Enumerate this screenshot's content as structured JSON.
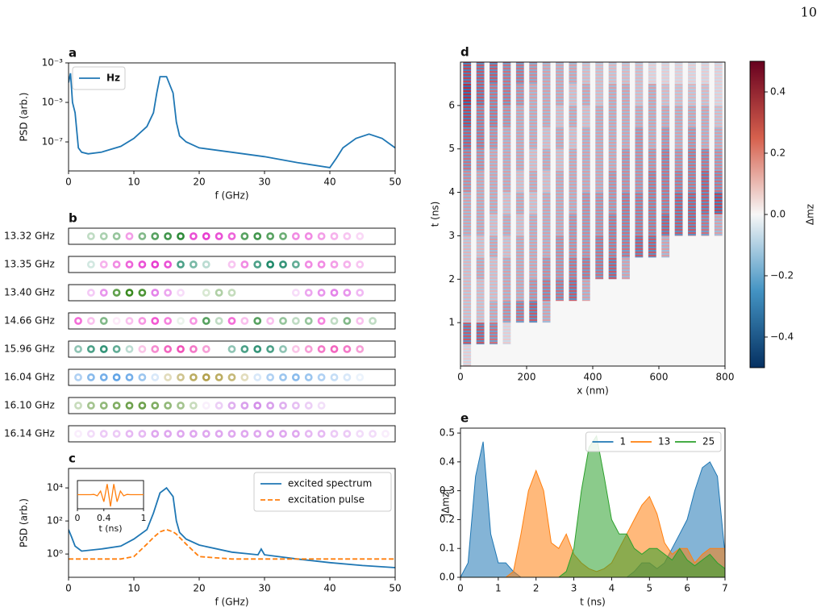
{
  "page_number": "10",
  "chart_data": [
    {
      "type": "line",
      "label": "a",
      "xlabel": "f (GHz)",
      "ylabel": "PSD (arb.)",
      "xlim": [
        0,
        50
      ],
      "xticks": [
        0,
        10,
        20,
        30,
        40,
        50
      ],
      "ylim": [
        3.4e-09,
        0.001
      ],
      "ylog": true,
      "yticks": [
        {
          "value": 0.001,
          "label": "10⁻³"
        },
        {
          "value": 1e-05,
          "label": "10⁻⁵"
        },
        {
          "value": 1e-07,
          "label": "10⁻⁷"
        }
      ],
      "legend": "upper left",
      "x": [
        0,
        0.3,
        0.6,
        1,
        1.5,
        2,
        3,
        5,
        8,
        10,
        12,
        13,
        13.5,
        14,
        15,
        16,
        16.5,
        17,
        18,
        20,
        25,
        30,
        35,
        40,
        41,
        42,
        44,
        46,
        48,
        50
      ],
      "series": [
        {
          "name": "Hz",
          "color": "#1f77b4",
          "values": [
            0.0001,
            0.0003,
            1e-05,
            3e-06,
            5e-08,
            3e-08,
            2.5e-08,
            3e-08,
            6e-08,
            1.5e-07,
            6e-07,
            3e-06,
            3e-05,
            0.0002,
            0.0002,
            3e-05,
            1e-06,
            2e-07,
            1e-07,
            5e-08,
            3e-08,
            1.8e-08,
            9e-09,
            5e-09,
            1.5e-08,
            5e-08,
            1.5e-07,
            2.5e-07,
            1.5e-07,
            5e-08
          ]
        }
      ]
    },
    {
      "type": "dots",
      "label": "b",
      "rows": [
        {
          "name": "13.32 GHz",
          "colors": [
            "#2e8b3a",
            "#e83ed0"
          ],
          "values": [
            0,
            0.3,
            0.4,
            0.5,
            -0.5,
            0.6,
            0.8,
            0.9,
            1,
            -0.9,
            -1,
            -0.9,
            -0.8,
            0.8,
            0.9,
            0.8,
            0.7,
            -0.6,
            -0.6,
            -0.5,
            -0.4,
            -0.3,
            -0.2,
            0,
            0
          ]
        },
        {
          "name": "13.35 GHz",
          "colors": [
            "#1f8a6a",
            "#e83ed0"
          ],
          "values": [
            0,
            0.2,
            -0.4,
            -0.6,
            -0.8,
            -0.9,
            -1,
            -0.9,
            0.8,
            0.6,
            0.3,
            0,
            -0.3,
            -0.6,
            0.8,
            1,
            0.9,
            0.7,
            -0.6,
            -0.6,
            -0.5,
            -0.4,
            -0.3,
            0,
            0
          ]
        },
        {
          "name": "13.40 GHz",
          "colors": [
            "#3a8a20",
            "#d94ee0"
          ],
          "values": [
            0,
            -0.3,
            -0.6,
            0.8,
            1,
            0.9,
            -0.7,
            -0.5,
            -0.2,
            0,
            0.2,
            0.4,
            0.3,
            0,
            0,
            0,
            0,
            -0.2,
            -0.5,
            -0.6,
            -0.7,
            -0.6,
            -0.4,
            0,
            0
          ]
        },
        {
          "name": "14.66 GHz",
          "colors": [
            "#2e8b3a",
            "#f030c8"
          ],
          "values": [
            -0.7,
            -0.3,
            0.6,
            -0.1,
            -0.3,
            -0.5,
            -0.8,
            -0.6,
            0.1,
            -0.5,
            0.8,
            0.3,
            -0.7,
            -0.3,
            0.8,
            -0.3,
            0.5,
            0.3,
            0.5,
            -0.6,
            0.3,
            0.6,
            -0.3,
            0.3,
            0
          ]
        },
        {
          "name": "15.96 GHz",
          "colors": [
            "#1f8a6a",
            "#f040b0"
          ],
          "values": [
            0.5,
            0.8,
            0.9,
            0.7,
            0.3,
            -0.3,
            -0.6,
            -0.8,
            -0.9,
            -0.7,
            -0.5,
            0,
            0.5,
            0.8,
            0.9,
            0.8,
            0.5,
            -0.3,
            -0.5,
            -0.7,
            -0.8,
            -0.7,
            -0.5,
            0,
            0
          ]
        },
        {
          "name": "16.04 GHz",
          "colors": [
            "#3a8de0",
            "#a08a20"
          ],
          "values": [
            0.4,
            0.6,
            0.7,
            0.8,
            0.7,
            0.5,
            0.2,
            -0.3,
            -0.5,
            -0.7,
            -0.8,
            -0.7,
            -0.6,
            -0.3,
            0.2,
            0.4,
            0.5,
            0.6,
            0.5,
            0.4,
            0.3,
            0.2,
            0.1,
            0,
            0
          ]
        },
        {
          "name": "16.10 GHz",
          "colors": [
            "#4a8a20",
            "#c060e0"
          ],
          "values": [
            0.3,
            0.5,
            0.6,
            0.7,
            0.8,
            0.8,
            0.7,
            0.6,
            0.5,
            0.3,
            -0.1,
            -0.3,
            -0.5,
            -0.6,
            -0.7,
            -0.6,
            -0.5,
            -0.4,
            -0.3,
            -0.2,
            0,
            0,
            0,
            0,
            0
          ]
        },
        {
          "name": "16.14 GHz",
          "colors": [
            "#4a8a20",
            "#c050e0"
          ],
          "values": [
            -0.1,
            -0.2,
            -0.3,
            -0.3,
            -0.4,
            -0.4,
            -0.5,
            -0.5,
            -0.5,
            -0.5,
            -0.5,
            -0.5,
            -0.5,
            -0.5,
            -0.5,
            -0.5,
            -0.5,
            -0.5,
            -0.4,
            -0.4,
            -0.3,
            -0.3,
            -0.2,
            -0.2,
            -0.1
          ]
        }
      ]
    },
    {
      "type": "line",
      "label": "c",
      "xlabel": "f (GHz)",
      "ylabel": "PSD (arb.)",
      "xlim": [
        0,
        50
      ],
      "xticks": [
        0,
        10,
        20,
        30,
        40,
        50
      ],
      "ylim": [
        0.039,
        150000
      ],
      "ylog": true,
      "yticks": [
        {
          "value": 1,
          "label": "10⁰"
        },
        {
          "value": 100,
          "label": "10²"
        },
        {
          "value": 10000,
          "label": "10⁴"
        }
      ],
      "legend": "upper right",
      "x": [
        0,
        0.5,
        1,
        2,
        5,
        8,
        10,
        12,
        13,
        14,
        15,
        16,
        16.5,
        17,
        18,
        20,
        25,
        29,
        29.5,
        30,
        35,
        40,
        45,
        50
      ],
      "series": [
        {
          "name": "excited spectrum",
          "color": "#1f77b4",
          "values": [
            30,
            10,
            3,
            1.5,
            2,
            3,
            8,
            30,
            300,
            5000,
            10000,
            3000,
            100,
            20,
            8,
            3.5,
            1.3,
            0.9,
            2,
            0.9,
            0.5,
            0.3,
            0.2,
            0.15
          ]
        },
        {
          "name": "excitation pulse",
          "color": "#ff7f0e",
          "dash": true,
          "values": [
            0.5,
            0.5,
            0.5,
            0.5,
            0.5,
            0.5,
            0.7,
            4,
            10,
            22,
            30,
            22,
            16,
            10,
            4,
            0.7,
            0.5,
            0.5,
            0.5,
            0.5,
            0.5,
            0.5,
            0.5,
            0.5
          ]
        }
      ],
      "inset": {
        "xlabel": "t (ns)",
        "xlim": [
          0,
          1
        ],
        "xticks": [
          0,
          0.4,
          1
        ],
        "ylim": [
          -1.2,
          1.2
        ],
        "color": "#ff7f0e",
        "x": [
          0,
          0.05,
          0.1,
          0.15,
          0.2,
          0.25,
          0.3,
          0.35,
          0.4,
          0.45,
          0.5,
          0.55,
          0.6,
          0.65,
          0.7,
          0.75,
          0.8,
          0.85,
          0.9,
          0.95,
          1
        ],
        "values": [
          0,
          0,
          0,
          0,
          0,
          0.02,
          -0.1,
          0.3,
          -0.6,
          0.9,
          -1,
          0.9,
          -0.6,
          0.3,
          -0.1,
          0.02,
          0,
          0,
          0,
          0,
          0
        ]
      }
    },
    {
      "type": "heatmap",
      "label": "d",
      "xlabel": "x (nm)",
      "ylabel": "t (ns)",
      "xlim": [
        0,
        800
      ],
      "xticks": [
        0,
        200,
        400,
        600,
        800
      ],
      "ylim": [
        0,
        7
      ],
      "yticks": [
        1,
        2,
        3,
        4,
        5,
        6
      ],
      "x": [
        20,
        60,
        100,
        140,
        180,
        220,
        260,
        300,
        340,
        380,
        420,
        460,
        500,
        540,
        580,
        620,
        660,
        700,
        740,
        780
      ],
      "y": [
        0.25,
        0.75,
        1.25,
        1.75,
        2.25,
        2.75,
        3.25,
        3.75,
        4.25,
        4.75,
        5.25,
        5.75,
        6.25,
        6.75
      ],
      "z": [
        [
          0.1,
          0,
          0,
          0,
          0,
          0,
          0,
          0,
          0,
          0,
          0,
          0,
          0,
          0,
          0,
          0,
          0,
          0,
          0,
          0
        ],
        [
          0.35,
          0.35,
          0.3,
          0.1,
          0,
          0,
          0,
          0,
          0,
          0,
          0,
          0,
          0,
          0,
          0,
          0,
          0,
          0,
          0,
          0
        ],
        [
          0.15,
          0.15,
          0.2,
          0.25,
          0.3,
          0.35,
          0.2,
          0,
          0,
          0,
          0,
          0,
          0,
          0,
          0,
          0,
          0,
          0,
          0,
          0
        ],
        [
          0.15,
          0.15,
          0.15,
          0.2,
          0.2,
          0.25,
          0.3,
          0.3,
          0.35,
          0.2,
          0,
          0,
          0,
          0,
          0,
          0,
          0,
          0,
          0,
          0
        ],
        [
          0.15,
          0.2,
          0.15,
          0.2,
          0.2,
          0.2,
          0.25,
          0.25,
          0.3,
          0.3,
          0.3,
          0.35,
          0.2,
          0,
          0,
          0,
          0,
          0,
          0,
          0
        ],
        [
          0.15,
          0.15,
          0.2,
          0.15,
          0.2,
          0.2,
          0.2,
          0.25,
          0.25,
          0.25,
          0.3,
          0.3,
          0.3,
          0.35,
          0.35,
          0.2,
          0,
          0,
          0,
          0
        ],
        [
          0.2,
          0.2,
          0.15,
          0.2,
          0.15,
          0.2,
          0.2,
          0.2,
          0.25,
          0.25,
          0.25,
          0.3,
          0.3,
          0.3,
          0.3,
          0.35,
          0.35,
          0.35,
          0.3,
          0.2
        ],
        [
          0.2,
          0.2,
          0.2,
          0.15,
          0.2,
          0.15,
          0.2,
          0.2,
          0.2,
          0.25,
          0.25,
          0.25,
          0.3,
          0.3,
          0.3,
          0.3,
          0.35,
          0.35,
          0.35,
          0.4
        ],
        [
          0.25,
          0.2,
          0.2,
          0.2,
          0.15,
          0.2,
          0.15,
          0.2,
          0.2,
          0.2,
          0.2,
          0.25,
          0.25,
          0.25,
          0.3,
          0.3,
          0.3,
          0.3,
          0.35,
          0.3
        ],
        [
          0.3,
          0.25,
          0.2,
          0.2,
          0.2,
          0.15,
          0.2,
          0.15,
          0.2,
          0.2,
          0.2,
          0.2,
          0.25,
          0.25,
          0.25,
          0.3,
          0.25,
          0.3,
          0.3,
          0.25
        ],
        [
          0.35,
          0.3,
          0.25,
          0.2,
          0.2,
          0.2,
          0.15,
          0.2,
          0.15,
          0.2,
          0.2,
          0.2,
          0.2,
          0.25,
          0.2,
          0.25,
          0.2,
          0.25,
          0.2,
          0.2
        ],
        [
          0.4,
          0.3,
          0.3,
          0.25,
          0.2,
          0.2,
          0.2,
          0.15,
          0.2,
          0.15,
          0.2,
          0.2,
          0.2,
          0.2,
          0.2,
          0.2,
          0.2,
          0.2,
          0.2,
          0.15
        ],
        [
          0.45,
          0.35,
          0.3,
          0.3,
          0.25,
          0.2,
          0.2,
          0.2,
          0.15,
          0.2,
          0.15,
          0.2,
          0.2,
          0.15,
          0.2,
          0.15,
          0.15,
          0.15,
          0.15,
          0.1
        ],
        [
          0.4,
          0.35,
          0.35,
          0.3,
          0.3,
          0.25,
          0.2,
          0.2,
          0.2,
          0.15,
          0.15,
          0.15,
          0.15,
          0.15,
          0.1,
          0.1,
          0.1,
          0.1,
          0.1,
          0.1
        ]
      ],
      "colorbar": {
        "label": "Δmz",
        "lim": [
          -0.5,
          0.5
        ],
        "ticks": [
          {
            "value": -0.4,
            "label": "−0.4"
          },
          {
            "value": -0.2,
            "label": "−0.2"
          },
          {
            "value": 0,
            "label": "0.0"
          },
          0.2,
          0.4
        ],
        "colors": [
          "#053061",
          "#4393c3",
          "#f7f7f7",
          "#d6604d",
          "#67001f"
        ]
      }
    },
    {
      "type": "area",
      "label": "e",
      "xlabel": "t (ns)",
      "ylabel": "|Δmz|",
      "xlim": [
        0,
        7
      ],
      "xticks": [
        0,
        1,
        2,
        3,
        4,
        5,
        6,
        7
      ],
      "ylim": [
        0,
        0.517
      ],
      "yticks": [
        {
          "value": 0,
          "label": "0.0"
        },
        0.1,
        0.2,
        0.3,
        0.4,
        0.5
      ],
      "legend": "upper right",
      "x": [
        0,
        0.2,
        0.4,
        0.6,
        0.8,
        1.0,
        1.2,
        1.4,
        1.6,
        1.8,
        2.0,
        2.2,
        2.4,
        2.6,
        2.8,
        3.0,
        3.2,
        3.4,
        3.6,
        3.8,
        4.0,
        4.2,
        4.4,
        4.6,
        4.8,
        5.0,
        5.2,
        5.4,
        5.6,
        5.8,
        6.0,
        6.2,
        6.4,
        6.6,
        6.8,
        7.0
      ],
      "series": [
        {
          "name": "1",
          "color": "#1f77b4",
          "values": [
            0,
            0.05,
            0.35,
            0.47,
            0.15,
            0.05,
            0.05,
            0.02,
            0,
            0,
            0,
            0,
            0,
            0,
            0,
            0,
            0,
            0,
            0,
            0,
            0,
            0,
            0,
            0.02,
            0.05,
            0.05,
            0.03,
            0.05,
            0.1,
            0.15,
            0.2,
            0.3,
            0.38,
            0.4,
            0.35,
            0.08
          ]
        },
        {
          "name": "13",
          "color": "#ff7f0e",
          "values": [
            0,
            0,
            0,
            0,
            0,
            0,
            0,
            0.02,
            0.15,
            0.3,
            0.37,
            0.3,
            0.12,
            0.1,
            0.15,
            0.08,
            0.05,
            0.03,
            0.02,
            0.03,
            0.05,
            0.1,
            0.15,
            0.2,
            0.25,
            0.28,
            0.22,
            0.12,
            0.08,
            0.1,
            0.1,
            0.05,
            0.08,
            0.1,
            0.1,
            0.1
          ]
        },
        {
          "name": "25",
          "color": "#2ca02c",
          "values": [
            0,
            0,
            0,
            0,
            0,
            0,
            0,
            0,
            0,
            0,
            0,
            0,
            0,
            0,
            0.02,
            0.1,
            0.3,
            0.45,
            0.49,
            0.35,
            0.2,
            0.15,
            0.15,
            0.1,
            0.08,
            0.1,
            0.1,
            0.08,
            0.06,
            0.1,
            0.06,
            0.04,
            0.06,
            0.08,
            0.05,
            0.03
          ]
        }
      ]
    }
  ]
}
